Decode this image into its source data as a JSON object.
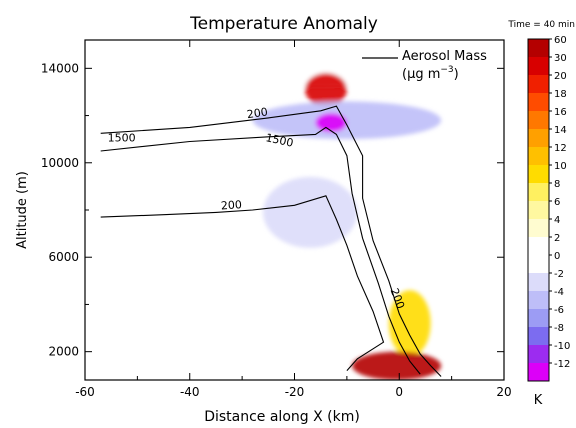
{
  "chart_data": {
    "type": "heatmap",
    "title": "Temperature Anomaly",
    "time_label": "Time = 40 min",
    "xlabel": "Distance along X (km)",
    "ylabel": "Altitude (m)",
    "xlim": [
      -60,
      20
    ],
    "ylim": [
      800,
      15200
    ],
    "xticks": [
      "-60",
      "-40",
      "-20",
      "0",
      "20"
    ],
    "xtick_values": [
      -60,
      -40,
      -20,
      0,
      20
    ],
    "yticks": [
      "2000",
      "6000",
      "10000",
      "14000"
    ],
    "ytick_values": [
      2000,
      6000,
      10000,
      14000
    ],
    "colorbar": {
      "unit": "K",
      "labels": [
        "60",
        "30",
        "20",
        "18",
        "16",
        "14",
        "12",
        "10",
        "8",
        "6",
        "4",
        "2",
        "0",
        "-2",
        "-4",
        "-6",
        "-8",
        "-10",
        "-12"
      ],
      "colors": [
        "#b40000",
        "#d80000",
        "#f02000",
        "#ff4c00",
        "#ff7800",
        "#ffa000",
        "#ffc000",
        "#ffdc00",
        "#fff060",
        "#fff8a0",
        "#fffcd0",
        "#ffffff",
        "#ffffff",
        "#dcdcfa",
        "#bebef8",
        "#9c9cf4",
        "#7c6cf0",
        "#9c2cf0",
        "#dc00f8"
      ]
    },
    "aerosol_legend": {
      "line1": "Aerosol Mass",
      "line2": "(μg m",
      "exp": "−3",
      "line2_end": ")"
    },
    "contour_labels": [
      "200",
      "1500",
      "1500",
      "200",
      "200"
    ],
    "anomaly_regions": [
      {
        "name": "upper-warm-band",
        "x": [
          -60,
          20
        ],
        "y": [
          13200,
          14600
        ],
        "value": 2
      },
      {
        "name": "upper-warm-core",
        "x": [
          -18,
          -10
        ],
        "y": [
          12400,
          13800
        ],
        "value": 30
      },
      {
        "name": "upper-cool-band",
        "x": [
          -28,
          8
        ],
        "y": [
          11000,
          12600
        ],
        "value": -4
      },
      {
        "name": "upper-cool-core",
        "x": [
          -16,
          -10
        ],
        "y": [
          11300,
          12100
        ],
        "value": -12
      },
      {
        "name": "mid-cool-patch",
        "x": [
          -26,
          -8
        ],
        "y": [
          6400,
          9400
        ],
        "value": -2
      },
      {
        "name": "plume-warm-column",
        "x": [
          -2,
          6
        ],
        "y": [
          1800,
          4600
        ],
        "value": 10
      },
      {
        "name": "surface-hot-core",
        "x": [
          -9,
          8
        ],
        "y": [
          800,
          2000
        ],
        "value": 60
      }
    ],
    "contours": [
      {
        "label": "200",
        "points": [
          [
            -57,
            11250
          ],
          [
            -40,
            11500
          ],
          [
            -25,
            11900
          ],
          [
            -15,
            12200
          ],
          [
            -12,
            12400
          ],
          [
            -10,
            11600
          ],
          [
            -7,
            10300
          ],
          [
            -7,
            8500
          ],
          [
            -5,
            6700
          ],
          [
            -2,
            5000
          ],
          [
            0,
            3600
          ],
          [
            2,
            2700
          ],
          [
            4,
            1900
          ],
          [
            6,
            1400
          ],
          [
            8,
            950
          ]
        ]
      },
      {
        "label": "1500",
        "points": [
          [
            -57,
            10500
          ],
          [
            -40,
            10900
          ],
          [
            -25,
            11100
          ],
          [
            -16,
            11200
          ],
          [
            -14,
            11500
          ],
          [
            -12,
            11200
          ],
          [
            -10,
            10300
          ],
          [
            -9,
            8700
          ],
          [
            -7,
            6800
          ],
          [
            -4,
            4900
          ],
          [
            -2,
            3500
          ],
          [
            0,
            2400
          ],
          [
            2,
            1600
          ],
          [
            4,
            1050
          ]
        ]
      },
      {
        "label": "200",
        "points": [
          [
            -57,
            7700
          ],
          [
            -45,
            7800
          ],
          [
            -35,
            7900
          ],
          [
            -28,
            8000
          ],
          [
            -20,
            8200
          ],
          [
            -14,
            8600
          ],
          [
            -12,
            7600
          ],
          [
            -10,
            6500
          ],
          [
            -8,
            5200
          ],
          [
            -5,
            3700
          ],
          [
            -3,
            2400
          ],
          [
            -8,
            1700
          ],
          [
            -10,
            1200
          ]
        ]
      }
    ]
  }
}
